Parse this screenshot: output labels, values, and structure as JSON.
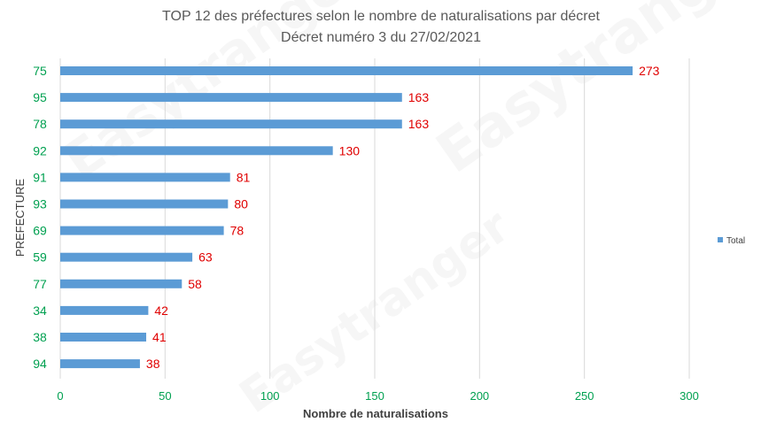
{
  "chart_data": {
    "type": "bar",
    "orientation": "horizontal",
    "title": "TOP 12 des préfectures selon le nombre de naturalisations par décret",
    "subtitle": "Décret numéro 3 du 27/02/2021",
    "xlabel": "Nombre de naturalisations",
    "ylabel": "PREFECTURE",
    "categories": [
      "75",
      "95",
      "78",
      "92",
      "91",
      "93",
      "69",
      "59",
      "77",
      "34",
      "38",
      "94"
    ],
    "series": [
      {
        "name": "Total",
        "values": [
          273,
          163,
          163,
          130,
          81,
          80,
          78,
          63,
          58,
          42,
          41,
          38
        ]
      }
    ],
    "xlim": [
      0,
      300
    ],
    "x_ticks": [
      0,
      50,
      100,
      150,
      200,
      250,
      300
    ],
    "grid": "vertical",
    "legend_position": "right",
    "colors": {
      "bar": "#5b9bd5",
      "value_label": "#e00000",
      "category_label": "#00a050",
      "tick_label": "#00a050",
      "gridline": "#d9d9d9",
      "title": "#595959",
      "axis_title": "#404040"
    }
  },
  "watermark": {
    "text": "Easytranger"
  }
}
